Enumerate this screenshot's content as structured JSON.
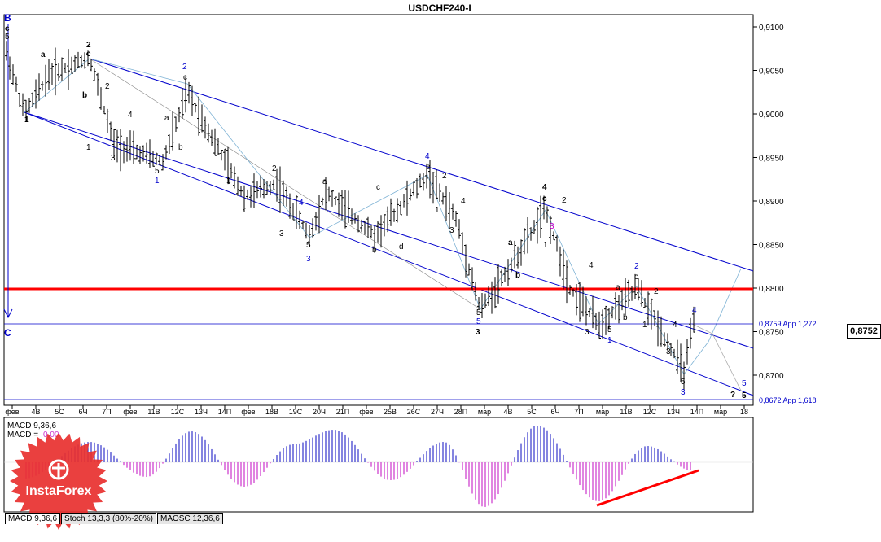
{
  "chart_data": {
    "type": "bar",
    "title": "USDCHF240-I",
    "ylim": [
      0.8672,
      0.9115
    ],
    "y_ticks": [
      "0,9100",
      "0,9050",
      "0,9000",
      "0,8950",
      "0,8900",
      "0,8850",
      "0,8800",
      "0,8750",
      "0,8700"
    ],
    "x_ticks": [
      "фев",
      "4В",
      "5С",
      "6Ч",
      "7П",
      "фев",
      "11В",
      "12С",
      "13Ч",
      "14П",
      "фев",
      "18В",
      "19С",
      "20Ч",
      "21П",
      "фев",
      "25В",
      "26С",
      "27Ч",
      "28П",
      "мар",
      "4В",
      "5С",
      "6Ч",
      "7П",
      "мар",
      "11В",
      "12С",
      "13Ч",
      "14П",
      "мар",
      "18"
    ],
    "current_price": "0,8752",
    "levels": [
      {
        "value": 0.8759,
        "label": "0,8759 App 1,272"
      },
      {
        "value": 0.8672,
        "label": "0,8672 App 1,618"
      },
      {
        "value": 0.88,
        "color": "#ff0000"
      }
    ],
    "macd_label": "MACD 9,36,6",
    "macd_value_label": "MACD =",
    "macd_value": "0,00",
    "wave_labels_left": [
      "B",
      "c",
      "5",
      "C"
    ]
  },
  "tabs": [
    {
      "label": "MACD 9,36,6"
    },
    {
      "label": "Stoch 13,3,3 (80%-20%)"
    },
    {
      "label": "MAOSC 12,36,6"
    }
  ],
  "logo_text": "InstaForex",
  "colors": {
    "wave_blue": "#0000cc",
    "resistance_red": "#ff0000",
    "macd_pos": "#3333cc",
    "macd_neg": "#cc33cc"
  }
}
